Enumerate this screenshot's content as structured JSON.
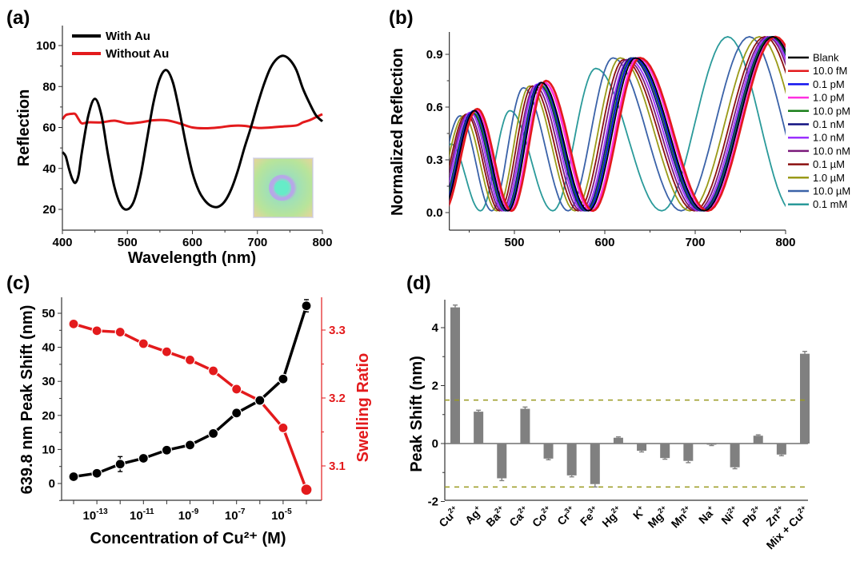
{
  "panels": {
    "a": "(a)",
    "b": "(b)",
    "c": "(c)",
    "d": "(d)"
  },
  "chart_data": [
    {
      "id": "a",
      "type": "line",
      "title": "",
      "xlabel": "Wavelength (nm)",
      "ylabel": "Reflection",
      "xlim": [
        400,
        800
      ],
      "ylim": [
        10,
        110
      ],
      "xticks": [
        400,
        500,
        600,
        700,
        800
      ],
      "yticks": [
        20,
        40,
        60,
        80,
        100
      ],
      "legend_position": "top-left",
      "inset": "photo of iridescent hydrogel film sample (bottom-right)",
      "series": [
        {
          "name": "With Au",
          "color": "#000000",
          "x": [
            400,
            405,
            410,
            415,
            420,
            425,
            430,
            440,
            450,
            460,
            470,
            480,
            490,
            500,
            510,
            520,
            530,
            540,
            550,
            560,
            570,
            580,
            590,
            600,
            610,
            620,
            630,
            640,
            650,
            660,
            670,
            680,
            690,
            700,
            710,
            720,
            730,
            740,
            750,
            760,
            770,
            780,
            790,
            800
          ],
          "y": [
            48,
            46,
            40,
            35,
            33,
            37,
            48,
            66,
            74,
            66,
            47,
            31,
            22,
            20,
            24,
            36,
            54,
            72,
            84,
            88,
            82,
            68,
            52,
            38,
            29,
            24,
            21.5,
            21.3,
            24,
            30,
            39,
            50,
            60,
            71,
            81,
            89,
            93.5,
            95,
            93,
            88,
            79,
            72,
            66,
            63
          ]
        },
        {
          "name": "Without Au",
          "color": "#e31a1c",
          "x": [
            400,
            405,
            410,
            415,
            420,
            425,
            430,
            440,
            460,
            480,
            500,
            520,
            540,
            560,
            580,
            600,
            620,
            640,
            660,
            680,
            700,
            720,
            740,
            760,
            770,
            780,
            790,
            800
          ],
          "y": [
            64,
            66,
            66.5,
            66.7,
            66.5,
            64,
            62,
            62.5,
            62.5,
            63.3,
            62,
            62.5,
            63.5,
            63.5,
            62,
            60,
            59.6,
            60,
            60.8,
            60.8,
            59.8,
            60,
            60.5,
            61,
            62.5,
            63.5,
            65,
            66.5
          ]
        }
      ]
    },
    {
      "id": "b",
      "type": "line",
      "title": "",
      "xlabel": "",
      "ylabel": "Normalized Reflection",
      "xlim": [
        428,
        800
      ],
      "ylim": [
        -0.1,
        1.05
      ],
      "xticks": [
        500,
        600,
        700,
        800
      ],
      "yticks": [
        0.0,
        0.3,
        0.6,
        0.9
      ],
      "legend_position": "right",
      "model_note": "Each spectrum is an interference-fringe curve; peak positions (nm) and peak heights read from the plot",
      "series": [
        {
          "name": "Blank",
          "color": "#000000",
          "peaks": [
            456,
            530,
            634,
            786
          ],
          "peak_heights": [
            0.58,
            0.74,
            0.88,
            1.0
          ]
        },
        {
          "name": "10.0 fM",
          "color": "#e31a1c",
          "peaks": [
            459,
            535,
            639,
            789
          ],
          "peak_heights": [
            0.59,
            0.75,
            0.88,
            1.0
          ]
        },
        {
          "name": "0.1 pM",
          "color": "#1010ee",
          "peaks": [
            455,
            529,
            632,
            786
          ],
          "peak_heights": [
            0.58,
            0.74,
            0.88,
            1.0
          ]
        },
        {
          "name": "1.0 pM",
          "color": "#ff30e0",
          "peaks": [
            458,
            533,
            637,
            788
          ],
          "peak_heights": [
            0.58,
            0.74,
            0.88,
            1.0
          ]
        },
        {
          "name": "10.0 pM",
          "color": "#1a7f1a",
          "peaks": [
            454,
            528,
            631,
            785
          ],
          "peak_heights": [
            0.57,
            0.73,
            0.88,
            1.0
          ]
        },
        {
          "name": "0.1 nM",
          "color": "#101080",
          "peaks": [
            453,
            527,
            629,
            784
          ],
          "peak_heights": [
            0.57,
            0.73,
            0.88,
            1.0
          ]
        },
        {
          "name": "1.0 nM",
          "color": "#9b30ff",
          "peaks": [
            451,
            525,
            627,
            782
          ],
          "peak_heights": [
            0.57,
            0.73,
            0.87,
            1.0
          ]
        },
        {
          "name": "10.0 nM",
          "color": "#7a1a7a",
          "peaks": [
            449,
            523,
            624,
            780
          ],
          "peak_heights": [
            0.56,
            0.72,
            0.87,
            1.0
          ]
        },
        {
          "name": "0.1 µM",
          "color": "#8b1010",
          "peaks": [
            447,
            520,
            621,
            777
          ],
          "peak_heights": [
            0.56,
            0.72,
            0.87,
            1.0
          ]
        },
        {
          "name": "1.0 µM",
          "color": "#9a9a18",
          "peaks": [
            444,
            517,
            617,
            771
          ],
          "peak_heights": [
            0.55,
            0.72,
            0.88,
            1.0
          ]
        },
        {
          "name": "10.0 µM",
          "color": "#3a62a8",
          "peaks": [
            440,
            510,
            609,
            760
          ],
          "peak_heights": [
            0.55,
            0.71,
            0.88,
            1.0
          ]
        },
        {
          "name": "0.1 mM",
          "color": "#2a9a9a",
          "peaks": [
            430,
            495,
            590,
            736
          ],
          "peak_heights": [
            0.39,
            0.58,
            0.82,
            1.0
          ]
        }
      ]
    },
    {
      "id": "c",
      "type": "line",
      "title": "",
      "xlabel": "Concentration of Cu²⁺ (M)",
      "ylabel": "639.8 nm Peak Shift (nm)",
      "ylabel_right": "Swelling Ratio",
      "xscale": "log",
      "x_exponents": [
        -14,
        -13,
        -12,
        -11,
        -10,
        -9,
        -8,
        -7,
        -6,
        -5,
        -4
      ],
      "xtick_labels": [
        "10^-13",
        "10^-11",
        "10^-9",
        "10^-7",
        "10^-5"
      ],
      "ylim": [
        -5,
        55
      ],
      "yticks": [
        0,
        10,
        20,
        30,
        40,
        50
      ],
      "ylim_right": [
        3.035,
        3.335
      ],
      "yticks_right": [
        3.1,
        3.2,
        3.3
      ],
      "series": [
        {
          "name": "Peak Shift",
          "axis": "left",
          "color": "#000000",
          "values": [
            2.0,
            3.0,
            5.7,
            7.4,
            9.8,
            11.3,
            14.7,
            20.7,
            24.4,
            30.7,
            52.2
          ],
          "errors": [
            0.3,
            0.4,
            2.2,
            0.9,
            0.5,
            0.5,
            0.5,
            0.5,
            0.5,
            0.6,
            1.8
          ]
        },
        {
          "name": "Swelling Ratio",
          "axis": "right",
          "color": "#e31a1c",
          "values": [
            3.309,
            3.299,
            3.297,
            3.28,
            3.268,
            3.256,
            3.24,
            3.213,
            3.196,
            3.156,
            3.065
          ]
        }
      ]
    },
    {
      "id": "d",
      "type": "bar",
      "title": "",
      "xlabel": "",
      "ylabel": "Peak Shift (nm)",
      "ylim": [
        -2,
        5
      ],
      "yticks": [
        -2,
        0,
        2,
        4
      ],
      "threshold_lines": [
        1.5,
        -1.5
      ],
      "threshold_color": "#9a9a20",
      "bar_color": "#808080",
      "categories": [
        "Cu2+",
        "Ag+",
        "Ba2+",
        "Ca2+",
        "Co2+",
        "Cr3+",
        "Fe3+",
        "Hg2+",
        "K+",
        "Mg2+",
        "Mn2+",
        "Na+",
        "Ni2+",
        "Pb2+",
        "Zn2+",
        "Mix + Cu2+"
      ],
      "category_labels": [
        {
          "base": "Cu",
          "sup": "2+"
        },
        {
          "base": "Ag",
          "sup": "+"
        },
        {
          "base": "Ba",
          "sup": "2+"
        },
        {
          "base": "Ca",
          "sup": "2+"
        },
        {
          "base": "Co",
          "sup": "2+"
        },
        {
          "base": "Cr",
          "sup": "3+"
        },
        {
          "base": "Fe",
          "sup": "3+"
        },
        {
          "base": "Hg",
          "sup": "2+"
        },
        {
          "base": "K",
          "sup": "+"
        },
        {
          "base": "Mg",
          "sup": "2+"
        },
        {
          "base": "Mn",
          "sup": "2+"
        },
        {
          "base": "Na",
          "sup": "+"
        },
        {
          "base": "Ni",
          "sup": "2+"
        },
        {
          "base": "Pb",
          "sup": "2+"
        },
        {
          "base": "Zn",
          "sup": "2+"
        },
        {
          "base": "Mix + Cu",
          "sup": "2+"
        }
      ],
      "values": [
        4.7,
        1.1,
        -1.2,
        1.2,
        -0.52,
        -1.1,
        -1.4,
        0.2,
        -0.25,
        -0.5,
        -0.6,
        -0.04,
        -0.82,
        0.27,
        -0.38,
        3.1
      ],
      "errors": [
        0.08,
        0.05,
        0.08,
        0.06,
        0.04,
        0.05,
        0.1,
        0.03,
        0.04,
        0.04,
        0.06,
        0.03,
        0.05,
        0.03,
        0.04,
        0.08
      ]
    }
  ]
}
